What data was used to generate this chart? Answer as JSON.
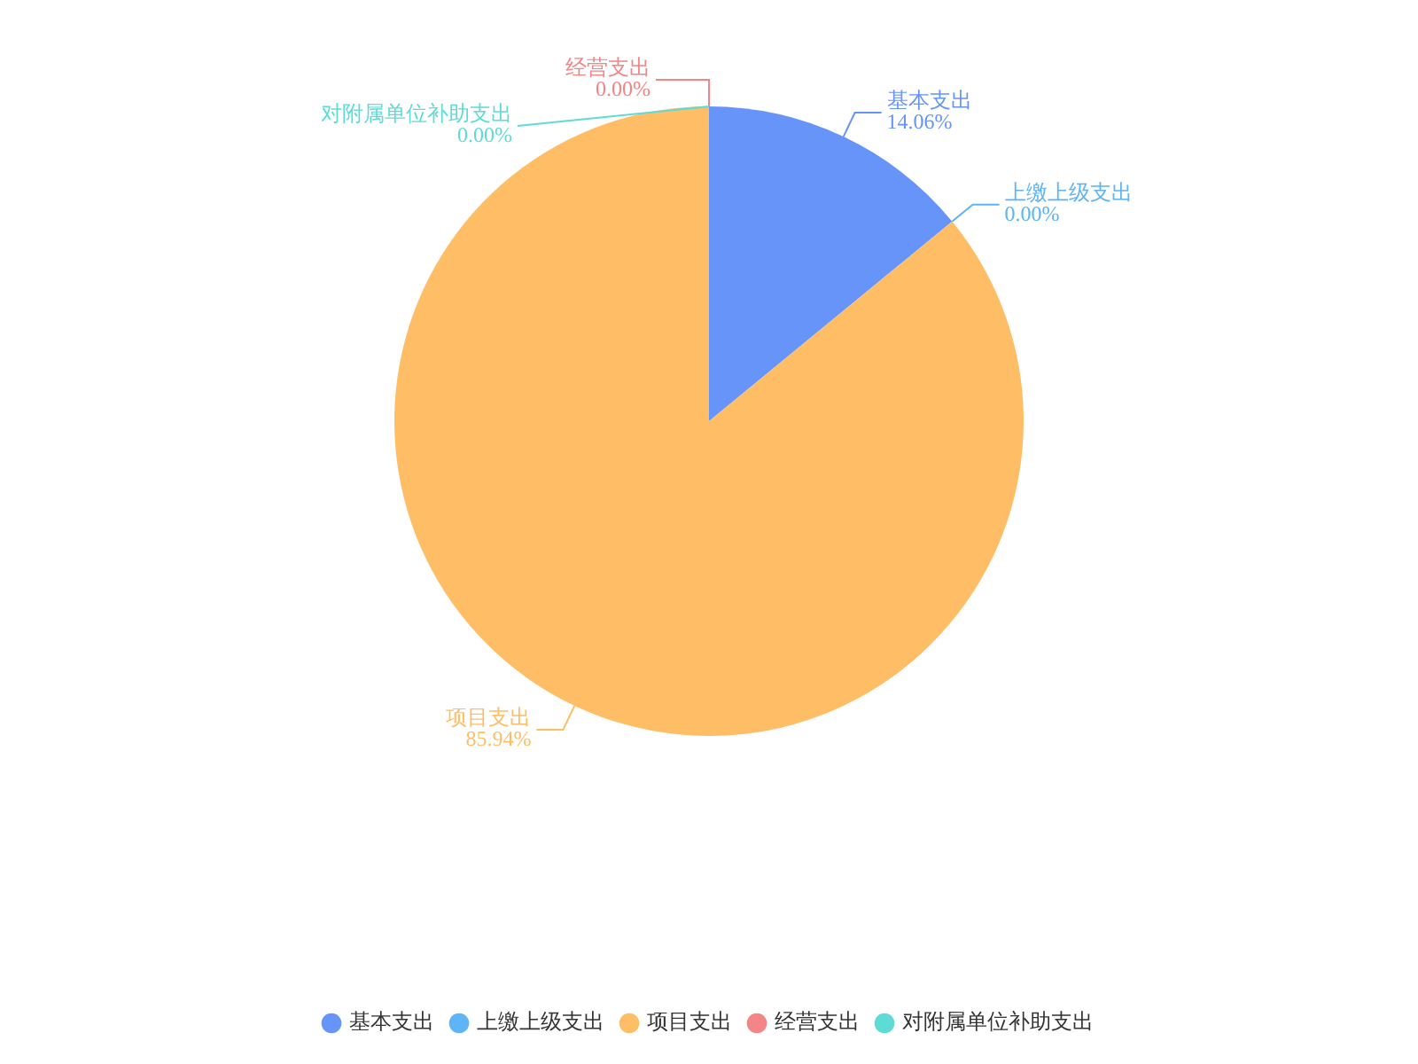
{
  "chart_data": {
    "type": "pie",
    "categories": [
      "基本支出",
      "上缴上级支出",
      "项目支出",
      "经营支出",
      "对附属单位补助支出"
    ],
    "values": [
      14.06,
      0,
      85.94,
      0,
      0
    ],
    "colors": [
      "#6794f8",
      "#5eb4f4",
      "#ffbd66",
      "#f38586",
      "#5fdbd6"
    ],
    "value_labels": [
      "14.06%",
      "0.00%",
      "85.94%",
      "0.00%",
      "0.00%"
    ],
    "legend": "bottom"
  }
}
